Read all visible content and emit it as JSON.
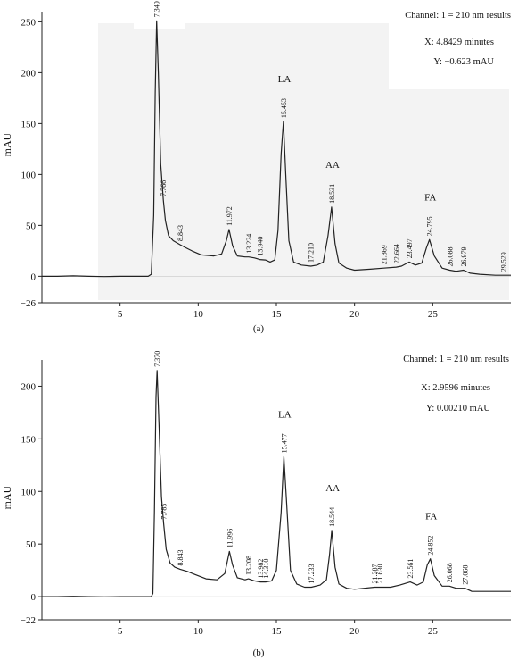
{
  "chart_data": [
    {
      "type": "line",
      "panel_label": "(a)",
      "ylabel": "mAU",
      "ylim": [
        -26,
        260
      ],
      "xlim": [
        0,
        30
      ],
      "x_ticks": [
        5,
        10,
        15,
        20,
        25
      ],
      "y_ticks": [
        -26,
        0,
        50,
        100,
        150,
        200,
        250
      ],
      "grid": false,
      "info_box": {
        "channel": "Channel: 1 = 210 nm results",
        "x_readout": "X: 4.8429 minutes",
        "y_readout": "Y: −0.623 mAU"
      },
      "baseline": [
        [
          0,
          0
        ],
        [
          1,
          0
        ],
        [
          2,
          0.4
        ],
        [
          3,
          0
        ],
        [
          4,
          -0.3
        ],
        [
          5,
          0
        ],
        [
          6,
          0
        ],
        [
          6.8,
          0
        ],
        [
          7.0,
          2
        ],
        [
          7.15,
          60
        ],
        [
          7.25,
          180
        ],
        [
          7.34,
          251
        ],
        [
          7.45,
          200
        ],
        [
          7.6,
          110
        ],
        [
          7.766,
          75
        ],
        [
          7.9,
          55
        ],
        [
          8.1,
          40
        ],
        [
          8.4,
          35
        ],
        [
          8.843,
          31
        ],
        [
          9.2,
          28
        ],
        [
          9.6,
          25
        ],
        [
          10.2,
          21
        ],
        [
          11.0,
          20
        ],
        [
          11.5,
          22
        ],
        [
          11.8,
          35
        ],
        [
          11.972,
          46
        ],
        [
          12.2,
          30
        ],
        [
          12.5,
          20
        ],
        [
          13.0,
          19
        ],
        [
          13.224,
          19
        ],
        [
          13.6,
          18
        ],
        [
          13.94,
          16.5
        ],
        [
          14.3,
          16
        ],
        [
          14.6,
          14
        ],
        [
          14.9,
          16
        ],
        [
          15.1,
          45
        ],
        [
          15.3,
          120
        ],
        [
          15.453,
          152
        ],
        [
          15.6,
          100
        ],
        [
          15.8,
          35
        ],
        [
          16.1,
          14
        ],
        [
          16.6,
          11
        ],
        [
          17.21,
          10
        ],
        [
          17.6,
          11
        ],
        [
          18.0,
          14
        ],
        [
          18.3,
          40
        ],
        [
          18.531,
          68
        ],
        [
          18.75,
          32
        ],
        [
          19.0,
          13
        ],
        [
          19.5,
          8
        ],
        [
          20.0,
          6
        ],
        [
          21.0,
          7
        ],
        [
          21.869,
          8
        ],
        [
          22.664,
          9
        ],
        [
          23.0,
          10
        ],
        [
          23.497,
          14
        ],
        [
          23.9,
          11
        ],
        [
          24.3,
          13
        ],
        [
          24.6,
          28
        ],
        [
          24.795,
          36
        ],
        [
          25.1,
          20
        ],
        [
          25.6,
          8
        ],
        [
          26.088,
          6
        ],
        [
          26.5,
          5
        ],
        [
          26.979,
          6
        ],
        [
          27.4,
          3
        ],
        [
          28.0,
          2
        ],
        [
          29.0,
          1
        ],
        [
          29.529,
          1
        ],
        [
          30,
          1
        ]
      ],
      "peaks": [
        {
          "x": 7.34,
          "label": "7.340"
        },
        {
          "x": 7.766,
          "label": "7.766"
        },
        {
          "x": 8.843,
          "label": "8.843"
        },
        {
          "x": 11.972,
          "label": "11.972"
        },
        {
          "x": 13.224,
          "label": "13.224"
        },
        {
          "x": 13.94,
          "label": "13.940"
        },
        {
          "x": 15.453,
          "label": "15.453",
          "name": "LA"
        },
        {
          "x": 17.21,
          "label": "17.210"
        },
        {
          "x": 18.531,
          "label": "18.531",
          "name": "AA"
        },
        {
          "x": 21.869,
          "label": "21.869"
        },
        {
          "x": 22.664,
          "label": "22.664"
        },
        {
          "x": 23.497,
          "label": "23.497"
        },
        {
          "x": 24.795,
          "label": "24.795",
          "name": "FA"
        },
        {
          "x": 26.088,
          "label": "26.088"
        },
        {
          "x": 26.979,
          "label": "26.979"
        },
        {
          "x": 29.529,
          "label": "29.529"
        }
      ]
    },
    {
      "type": "line",
      "panel_label": "(b)",
      "ylabel": "mAU",
      "ylim": [
        -22,
        225
      ],
      "xlim": [
        0,
        30
      ],
      "x_ticks": [
        5,
        10,
        15,
        20,
        25
      ],
      "y_ticks": [
        -22,
        0,
        50,
        100,
        150,
        200
      ],
      "grid": false,
      "info_box": {
        "channel": "Channel: 1 = 210 nm results",
        "x_readout": "X: 2.9596 minutes",
        "y_readout": "Y: 0.00210 mAU"
      },
      "baseline": [
        [
          0,
          0
        ],
        [
          1,
          0
        ],
        [
          2,
          0.3
        ],
        [
          3,
          0
        ],
        [
          4,
          -0.2
        ],
        [
          5,
          0
        ],
        [
          6,
          0
        ],
        [
          7.0,
          0
        ],
        [
          7.1,
          3
        ],
        [
          7.2,
          80
        ],
        [
          7.3,
          190
        ],
        [
          7.37,
          215
        ],
        [
          7.5,
          160
        ],
        [
          7.65,
          95
        ],
        [
          7.785,
          70
        ],
        [
          7.95,
          45
        ],
        [
          8.2,
          32
        ],
        [
          8.5,
          28
        ],
        [
          8.843,
          26
        ],
        [
          9.3,
          24
        ],
        [
          9.8,
          21
        ],
        [
          10.5,
          17
        ],
        [
          11.2,
          16
        ],
        [
          11.7,
          22
        ],
        [
          11.996,
          43
        ],
        [
          12.2,
          30
        ],
        [
          12.5,
          18
        ],
        [
          13.0,
          16
        ],
        [
          13.208,
          17
        ],
        [
          13.6,
          15
        ],
        [
          13.982,
          14
        ],
        [
          14.31,
          14
        ],
        [
          14.7,
          15
        ],
        [
          15.0,
          25
        ],
        [
          15.3,
          80
        ],
        [
          15.477,
          133
        ],
        [
          15.65,
          90
        ],
        [
          15.9,
          25
        ],
        [
          16.3,
          12
        ],
        [
          16.8,
          9
        ],
        [
          17.233,
          9
        ],
        [
          17.8,
          11
        ],
        [
          18.2,
          16
        ],
        [
          18.4,
          40
        ],
        [
          18.544,
          63
        ],
        [
          18.75,
          28
        ],
        [
          19.0,
          12
        ],
        [
          19.5,
          8
        ],
        [
          20.0,
          7
        ],
        [
          21.287,
          9
        ],
        [
          21.63,
          9
        ],
        [
          22.3,
          9
        ],
        [
          22.9,
          11
        ],
        [
          23.561,
          14
        ],
        [
          24.0,
          11
        ],
        [
          24.4,
          14
        ],
        [
          24.65,
          30
        ],
        [
          24.852,
          36
        ],
        [
          25.1,
          20
        ],
        [
          25.6,
          10
        ],
        [
          26.068,
          10
        ],
        [
          26.5,
          8
        ],
        [
          27.068,
          8
        ],
        [
          27.5,
          5
        ],
        [
          28.0,
          5
        ],
        [
          29.0,
          5
        ],
        [
          30,
          5
        ]
      ],
      "peaks": [
        {
          "x": 7.37,
          "label": "7.370"
        },
        {
          "x": 7.785,
          "label": "7.785"
        },
        {
          "x": 8.843,
          "label": "8.843"
        },
        {
          "x": 11.996,
          "label": "11.996"
        },
        {
          "x": 13.208,
          "label": "13.208"
        },
        {
          "x": 13.982,
          "label": "13.982"
        },
        {
          "x": 14.31,
          "label": "14.310"
        },
        {
          "x": 15.477,
          "label": "15.477",
          "name": "LA"
        },
        {
          "x": 17.233,
          "label": "17.233"
        },
        {
          "x": 18.544,
          "label": "18.544",
          "name": "AA"
        },
        {
          "x": 21.287,
          "label": "21.287"
        },
        {
          "x": 21.63,
          "label": "21.630"
        },
        {
          "x": 23.561,
          "label": "23.561"
        },
        {
          "x": 24.852,
          "label": "24.852",
          "name": "FA"
        },
        {
          "x": 26.068,
          "label": "26.068"
        },
        {
          "x": 27.068,
          "label": "27.068"
        }
      ]
    }
  ]
}
